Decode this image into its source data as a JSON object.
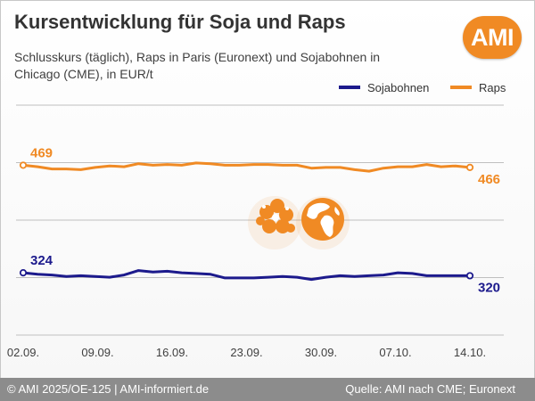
{
  "title": "Kursentwicklung für Soja und Raps",
  "subtitle": "Schlusskurs (täglich), Raps in Paris (Euronext) und Sojabohnen in Chicago (CME), in EUR/t",
  "logo": "AMI",
  "footer": {
    "left": "© AMI 2025/OE-125 | AMI-informiert.de",
    "right": "Quelle: AMI nach CME; Euronext"
  },
  "colors": {
    "raps": "#f08a24",
    "sojabohnen": "#1c1a8c",
    "grid": "#bfbfbf",
    "text": "#404040"
  },
  "icons": [
    "flower-icon",
    "globe-icon"
  ],
  "chart_data": {
    "type": "line",
    "x_ticks": [
      "02.09.",
      "09.09.",
      "16.09.",
      "23.09.",
      "30.09.",
      "07.10.",
      "14.10."
    ],
    "ylim": [
      240,
      550
    ],
    "grid": true,
    "legend": "top-right",
    "series": [
      {
        "name": "Raps",
        "color": "#f08a24",
        "start_label": "469",
        "end_label": "466",
        "values": [
          469,
          467,
          464,
          464,
          463,
          466,
          468,
          467,
          471,
          469,
          470,
          469,
          472,
          471,
          469,
          469,
          470,
          470,
          469,
          469,
          465,
          466,
          466,
          463,
          461,
          465,
          467,
          467,
          470,
          467,
          468,
          466
        ]
      },
      {
        "name": "Sojabohnen",
        "color": "#1c1a8c",
        "start_label": "324",
        "end_label": "320",
        "values": [
          324,
          322,
          321,
          319,
          320,
          319,
          318,
          321,
          327,
          325,
          326,
          324,
          323,
          322,
          317,
          317,
          317,
          318,
          319,
          318,
          315,
          318,
          320,
          319,
          320,
          321,
          324,
          323,
          320,
          320,
          320,
          320
        ]
      }
    ]
  }
}
